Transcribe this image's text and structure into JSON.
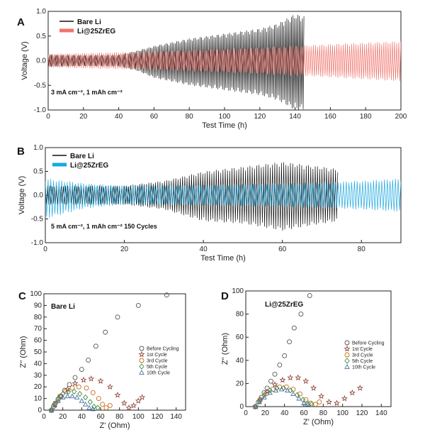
{
  "chart_data": [
    {
      "panel": "A",
      "type": "line",
      "xlabel": "Test Time (h)",
      "ylabel": "Voltage (V)",
      "xlim": [
        0,
        200
      ],
      "ylim": [
        -1.0,
        1.0
      ],
      "xticks": [
        0,
        20,
        40,
        60,
        80,
        100,
        120,
        140,
        160,
        180,
        200
      ],
      "yticks": [
        -1.0,
        -0.5,
        0.0,
        0.5,
        1.0
      ],
      "annotation": "3 mA cm⁻², 1 mAh cm⁻²",
      "legend_position": "top-left",
      "series": [
        {
          "name": "Bare Li",
          "color": "#111111",
          "envelope": {
            "x": [
              0,
              20,
              40,
              50,
              60,
              80,
              100,
              120,
              130,
              140,
              145
            ],
            "upper": [
              0.12,
              0.11,
              0.12,
              0.2,
              0.3,
              0.45,
              0.55,
              0.65,
              0.75,
              0.95,
              0.9
            ],
            "lower": [
              -0.12,
              -0.11,
              -0.12,
              -0.2,
              -0.35,
              -0.5,
              -0.6,
              -0.7,
              -0.8,
              -1.0,
              -1.0
            ]
          }
        },
        {
          "name": "Li@25ZrEG",
          "color": "#f0736b",
          "envelope": {
            "x": [
              0,
              50,
              100,
              150,
              200
            ],
            "upper": [
              0.14,
              0.18,
              0.24,
              0.32,
              0.4
            ],
            "lower": [
              -0.14,
              -0.18,
              -0.24,
              -0.32,
              -0.42
            ]
          }
        }
      ]
    },
    {
      "panel": "B",
      "type": "line",
      "xlabel": "Test Time (h)",
      "ylabel": "Voltage (V)",
      "xlim": [
        0,
        90
      ],
      "ylim": [
        -1.0,
        1.0
      ],
      "xticks": [
        0,
        20,
        40,
        60,
        80
      ],
      "yticks": [
        -1.0,
        -0.5,
        0.0,
        0.5,
        1.0
      ],
      "annotation": "5 mA cm⁻², 1 mAh cm⁻² 150 Cycles",
      "legend_position": "top-left",
      "series": [
        {
          "name": "Bare Li",
          "color": "#111111",
          "envelope": {
            "x": [
              0,
              20,
              30,
              40,
              50,
              60,
              70,
              74
            ],
            "upper": [
              0.2,
              0.2,
              0.3,
              0.5,
              0.6,
              0.7,
              0.6,
              0.55
            ],
            "lower": [
              -0.2,
              -0.2,
              -0.3,
              -0.55,
              -0.6,
              -0.75,
              -0.6,
              -0.55
            ]
          }
        },
        {
          "name": "Li@25ZrEG",
          "color": "#1aa7e0",
          "envelope": {
            "x": [
              0,
              10,
              20,
              40,
              60,
              80,
              90
            ],
            "upper": [
              0.35,
              0.25,
              0.2,
              0.22,
              0.25,
              0.3,
              0.35
            ],
            "lower": [
              -0.5,
              -0.28,
              -0.2,
              -0.22,
              -0.25,
              -0.3,
              -0.35
            ]
          }
        }
      ]
    },
    {
      "panel": "C",
      "type": "scatter",
      "title": "Bare Li",
      "xlabel": "Z' (Ohm)",
      "ylabel": "Z'' (Ohm)",
      "xlim": [
        0,
        150
      ],
      "ylim": [
        0,
        100
      ],
      "xticks": [
        0,
        20,
        40,
        60,
        80,
        100,
        120,
        140
      ],
      "yticks": [
        0,
        10,
        20,
        30,
        40,
        50,
        60,
        70,
        80,
        90,
        100
      ],
      "legend_position": "right",
      "series": [
        {
          "name": "Before Cycling",
          "marker": "circle",
          "color": "#555555",
          "x": [
            8,
            10,
            12,
            15,
            18,
            22,
            27,
            33,
            40,
            47,
            55,
            65,
            78,
            100,
            130
          ],
          "y": [
            0,
            3,
            6,
            9,
            12,
            17,
            22,
            28,
            35,
            43,
            55,
            67,
            80,
            90,
            99
          ]
        },
        {
          "name": "1st Cycle",
          "marker": "star",
          "color": "#8b3a2f",
          "x": [
            8,
            12,
            18,
            25,
            33,
            42,
            50,
            60,
            70,
            78,
            85,
            90,
            95,
            100,
            104
          ],
          "y": [
            0,
            5,
            12,
            18,
            23,
            26,
            27,
            25,
            20,
            13,
            6,
            2,
            4,
            8,
            11
          ]
        },
        {
          "name": "3rd Cycle",
          "marker": "circle",
          "color": "#c76a1a",
          "x": [
            8,
            12,
            17,
            23,
            30,
            37,
            45,
            52,
            58,
            62,
            66,
            70
          ],
          "y": [
            0,
            6,
            12,
            16,
            19,
            20,
            19,
            15,
            10,
            5,
            2,
            4
          ]
        },
        {
          "name": "5th Cycle",
          "marker": "diamond",
          "color": "#3f8f3f",
          "x": [
            8,
            11,
            15,
            20,
            26,
            32,
            38,
            44,
            49,
            53,
            57
          ],
          "y": [
            0,
            5,
            10,
            14,
            16,
            16,
            14,
            11,
            7,
            3,
            2
          ]
        },
        {
          "name": "10th Cycle",
          "marker": "triangle",
          "color": "#4a6fa5",
          "x": [
            8,
            11,
            15,
            20,
            25,
            30,
            35,
            40,
            44,
            48,
            52
          ],
          "y": [
            0,
            4,
            8,
            11,
            12,
            12,
            11,
            8,
            5,
            2,
            1
          ]
        }
      ]
    },
    {
      "panel": "D",
      "type": "scatter",
      "title": "Li@25ZrEG",
      "xlabel": "Z' (Ohm)",
      "ylabel": "Z'' (Ohm)",
      "xlim": [
        0,
        150
      ],
      "ylim": [
        0,
        100
      ],
      "xticks": [
        0,
        20,
        40,
        60,
        80,
        100,
        120,
        140
      ],
      "yticks": [
        0,
        20,
        40,
        60,
        80,
        100
      ],
      "legend_position": "right",
      "series": [
        {
          "name": "Before Cycling",
          "marker": "circle",
          "color": "#555555",
          "x": [
            10,
            13,
            16,
            19,
            22,
            26,
            30,
            35,
            40,
            45,
            50,
            57,
            66
          ],
          "y": [
            0,
            4,
            8,
            12,
            16,
            22,
            28,
            36,
            44,
            56,
            68,
            80,
            96
          ]
        },
        {
          "name": "1st Cycle",
          "marker": "star",
          "color": "#8b3a2f",
          "x": [
            10,
            15,
            22,
            30,
            38,
            46,
            54,
            62,
            70,
            78,
            86,
            94,
            102,
            110,
            118
          ],
          "y": [
            0,
            6,
            13,
            19,
            23,
            25,
            25,
            22,
            16,
            9,
            4,
            3,
            7,
            12,
            16
          ]
        },
        {
          "name": "3rd Cycle",
          "marker": "circle",
          "color": "#c76a1a",
          "x": [
            10,
            15,
            21,
            28,
            35,
            42,
            49,
            56,
            62,
            67,
            72,
            76
          ],
          "y": [
            0,
            6,
            11,
            15,
            17,
            17,
            15,
            11,
            6,
            3,
            2,
            4
          ]
        },
        {
          "name": "5th Cycle",
          "marker": "diamond",
          "color": "#3f8f3f",
          "x": [
            10,
            14,
            19,
            25,
            32,
            39,
            46,
            53,
            59,
            64,
            68
          ],
          "y": [
            0,
            5,
            10,
            14,
            16,
            16,
            14,
            10,
            6,
            3,
            2
          ]
        },
        {
          "name": "10th Cycle",
          "marker": "triangle",
          "color": "#4a6fa5",
          "x": [
            10,
            14,
            19,
            25,
            31,
            37,
            43,
            49,
            55,
            60,
            64
          ],
          "y": [
            0,
            4,
            8,
            12,
            14,
            15,
            14,
            11,
            7,
            3,
            2
          ]
        }
      ]
    }
  ]
}
